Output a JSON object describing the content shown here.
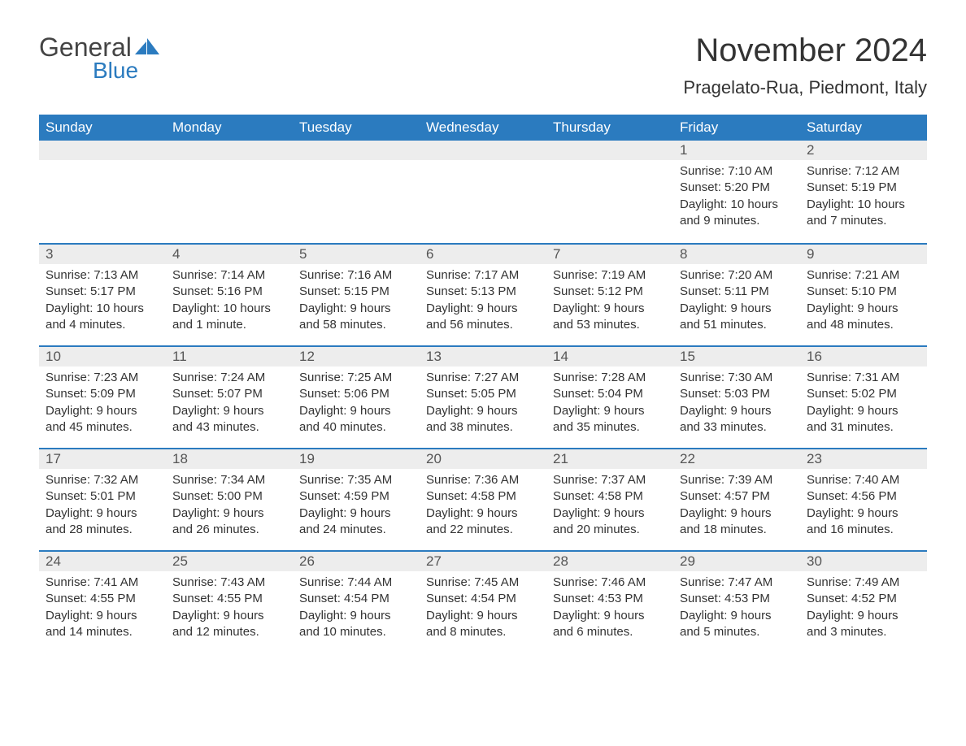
{
  "logo": {
    "general": "General",
    "blue": "Blue",
    "tri_color": "#2b7bbf"
  },
  "title": {
    "month": "November 2024",
    "location": "Pragelato-Rua, Piedmont, Italy"
  },
  "colors": {
    "header_bg": "#2b7bbf",
    "header_fg": "#ffffff",
    "daynum_bg": "#ededed",
    "row_border": "#2b7bbf",
    "text": "#333333"
  },
  "weekdays": [
    "Sunday",
    "Monday",
    "Tuesday",
    "Wednesday",
    "Thursday",
    "Friday",
    "Saturday"
  ],
  "weeks": [
    [
      null,
      null,
      null,
      null,
      null,
      {
        "n": "1",
        "sunrise": "Sunrise: 7:10 AM",
        "sunset": "Sunset: 5:20 PM",
        "daylight": "Daylight: 10 hours and 9 minutes."
      },
      {
        "n": "2",
        "sunrise": "Sunrise: 7:12 AM",
        "sunset": "Sunset: 5:19 PM",
        "daylight": "Daylight: 10 hours and 7 minutes."
      }
    ],
    [
      {
        "n": "3",
        "sunrise": "Sunrise: 7:13 AM",
        "sunset": "Sunset: 5:17 PM",
        "daylight": "Daylight: 10 hours and 4 minutes."
      },
      {
        "n": "4",
        "sunrise": "Sunrise: 7:14 AM",
        "sunset": "Sunset: 5:16 PM",
        "daylight": "Daylight: 10 hours and 1 minute."
      },
      {
        "n": "5",
        "sunrise": "Sunrise: 7:16 AM",
        "sunset": "Sunset: 5:15 PM",
        "daylight": "Daylight: 9 hours and 58 minutes."
      },
      {
        "n": "6",
        "sunrise": "Sunrise: 7:17 AM",
        "sunset": "Sunset: 5:13 PM",
        "daylight": "Daylight: 9 hours and 56 minutes."
      },
      {
        "n": "7",
        "sunrise": "Sunrise: 7:19 AM",
        "sunset": "Sunset: 5:12 PM",
        "daylight": "Daylight: 9 hours and 53 minutes."
      },
      {
        "n": "8",
        "sunrise": "Sunrise: 7:20 AM",
        "sunset": "Sunset: 5:11 PM",
        "daylight": "Daylight: 9 hours and 51 minutes."
      },
      {
        "n": "9",
        "sunrise": "Sunrise: 7:21 AM",
        "sunset": "Sunset: 5:10 PM",
        "daylight": "Daylight: 9 hours and 48 minutes."
      }
    ],
    [
      {
        "n": "10",
        "sunrise": "Sunrise: 7:23 AM",
        "sunset": "Sunset: 5:09 PM",
        "daylight": "Daylight: 9 hours and 45 minutes."
      },
      {
        "n": "11",
        "sunrise": "Sunrise: 7:24 AM",
        "sunset": "Sunset: 5:07 PM",
        "daylight": "Daylight: 9 hours and 43 minutes."
      },
      {
        "n": "12",
        "sunrise": "Sunrise: 7:25 AM",
        "sunset": "Sunset: 5:06 PM",
        "daylight": "Daylight: 9 hours and 40 minutes."
      },
      {
        "n": "13",
        "sunrise": "Sunrise: 7:27 AM",
        "sunset": "Sunset: 5:05 PM",
        "daylight": "Daylight: 9 hours and 38 minutes."
      },
      {
        "n": "14",
        "sunrise": "Sunrise: 7:28 AM",
        "sunset": "Sunset: 5:04 PM",
        "daylight": "Daylight: 9 hours and 35 minutes."
      },
      {
        "n": "15",
        "sunrise": "Sunrise: 7:30 AM",
        "sunset": "Sunset: 5:03 PM",
        "daylight": "Daylight: 9 hours and 33 minutes."
      },
      {
        "n": "16",
        "sunrise": "Sunrise: 7:31 AM",
        "sunset": "Sunset: 5:02 PM",
        "daylight": "Daylight: 9 hours and 31 minutes."
      }
    ],
    [
      {
        "n": "17",
        "sunrise": "Sunrise: 7:32 AM",
        "sunset": "Sunset: 5:01 PM",
        "daylight": "Daylight: 9 hours and 28 minutes."
      },
      {
        "n": "18",
        "sunrise": "Sunrise: 7:34 AM",
        "sunset": "Sunset: 5:00 PM",
        "daylight": "Daylight: 9 hours and 26 minutes."
      },
      {
        "n": "19",
        "sunrise": "Sunrise: 7:35 AM",
        "sunset": "Sunset: 4:59 PM",
        "daylight": "Daylight: 9 hours and 24 minutes."
      },
      {
        "n": "20",
        "sunrise": "Sunrise: 7:36 AM",
        "sunset": "Sunset: 4:58 PM",
        "daylight": "Daylight: 9 hours and 22 minutes."
      },
      {
        "n": "21",
        "sunrise": "Sunrise: 7:37 AM",
        "sunset": "Sunset: 4:58 PM",
        "daylight": "Daylight: 9 hours and 20 minutes."
      },
      {
        "n": "22",
        "sunrise": "Sunrise: 7:39 AM",
        "sunset": "Sunset: 4:57 PM",
        "daylight": "Daylight: 9 hours and 18 minutes."
      },
      {
        "n": "23",
        "sunrise": "Sunrise: 7:40 AM",
        "sunset": "Sunset: 4:56 PM",
        "daylight": "Daylight: 9 hours and 16 minutes."
      }
    ],
    [
      {
        "n": "24",
        "sunrise": "Sunrise: 7:41 AM",
        "sunset": "Sunset: 4:55 PM",
        "daylight": "Daylight: 9 hours and 14 minutes."
      },
      {
        "n": "25",
        "sunrise": "Sunrise: 7:43 AM",
        "sunset": "Sunset: 4:55 PM",
        "daylight": "Daylight: 9 hours and 12 minutes."
      },
      {
        "n": "26",
        "sunrise": "Sunrise: 7:44 AM",
        "sunset": "Sunset: 4:54 PM",
        "daylight": "Daylight: 9 hours and 10 minutes."
      },
      {
        "n": "27",
        "sunrise": "Sunrise: 7:45 AM",
        "sunset": "Sunset: 4:54 PM",
        "daylight": "Daylight: 9 hours and 8 minutes."
      },
      {
        "n": "28",
        "sunrise": "Sunrise: 7:46 AM",
        "sunset": "Sunset: 4:53 PM",
        "daylight": "Daylight: 9 hours and 6 minutes."
      },
      {
        "n": "29",
        "sunrise": "Sunrise: 7:47 AM",
        "sunset": "Sunset: 4:53 PM",
        "daylight": "Daylight: 9 hours and 5 minutes."
      },
      {
        "n": "30",
        "sunrise": "Sunrise: 7:49 AM",
        "sunset": "Sunset: 4:52 PM",
        "daylight": "Daylight: 9 hours and 3 minutes."
      }
    ]
  ]
}
